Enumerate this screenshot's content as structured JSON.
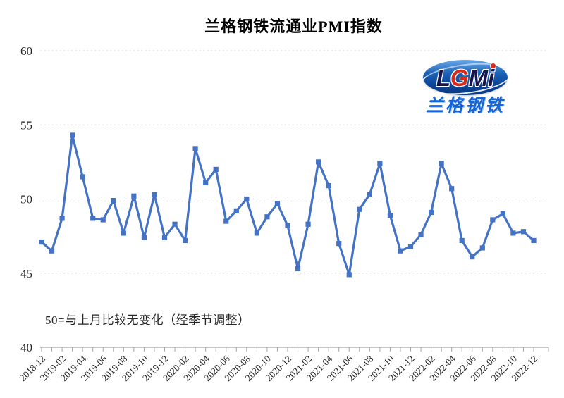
{
  "title": "兰格钢铁流通业PMI指数",
  "footnote": "50=与上月比较无变化（经季节调整）",
  "logo": {
    "l1": "L",
    "l2": "G",
    "l3": "M",
    "l4": "i",
    "subtext": "兰格钢铁"
  },
  "colors": {
    "line": "#4472C4",
    "grid": "#d9d9d9",
    "axis": "#a6a6a6",
    "tick_text": "#262626",
    "logo_red": "#d92b1c",
    "logo_navy": "#15154f",
    "logo_blue": "#1565d8"
  },
  "chart_data": {
    "type": "line",
    "title": "兰格钢铁流通业PMI指数",
    "xlabel": "",
    "ylabel": "",
    "ylim": [
      40,
      60
    ],
    "yticks": [
      40,
      45,
      50,
      55,
      60
    ],
    "grid": "horizontal-dashed",
    "legend": "none",
    "marker": "square",
    "x_tick_label_every": 2,
    "annotation": "50=与上月比较无变化（经季节调整）",
    "x": [
      "2018-12",
      "2019-01",
      "2019-02",
      "2019-03",
      "2019-04",
      "2019-05",
      "2019-06",
      "2019-07",
      "2019-08",
      "2019-09",
      "2019-10",
      "2019-11",
      "2019-12",
      "2020-01",
      "2020-02",
      "2020-03",
      "2020-04",
      "2020-05",
      "2020-06",
      "2020-07",
      "2020-08",
      "2020-09",
      "2020-10",
      "2020-11",
      "2020-12",
      "2021-01",
      "2021-02",
      "2021-03",
      "2021-04",
      "2021-05",
      "2021-06",
      "2021-07",
      "2021-08",
      "2021-09",
      "2021-10",
      "2021-11",
      "2021-12",
      "2022-01",
      "2022-02",
      "2022-03",
      "2022-04",
      "2022-05",
      "2022-06",
      "2022-07",
      "2022-08",
      "2022-09",
      "2022-10",
      "2022-11",
      "2022-12"
    ],
    "series": [
      {
        "name": "兰格钢铁流通业PMI指数",
        "values": [
          47.1,
          46.5,
          48.7,
          54.3,
          51.5,
          48.7,
          48.6,
          49.9,
          47.7,
          50.2,
          47.4,
          50.3,
          47.4,
          48.3,
          47.2,
          53.4,
          51.1,
          52.0,
          48.5,
          49.2,
          50.0,
          47.7,
          48.8,
          49.7,
          48.2,
          45.3,
          48.3,
          52.5,
          50.9,
          47.0,
          44.9,
          49.3,
          50.3,
          52.4,
          48.9,
          46.5,
          46.8,
          47.6,
          49.1,
          52.4,
          50.7,
          47.2,
          46.1,
          46.7,
          48.6,
          49.0,
          47.7,
          47.8,
          47.2
        ]
      }
    ]
  }
}
